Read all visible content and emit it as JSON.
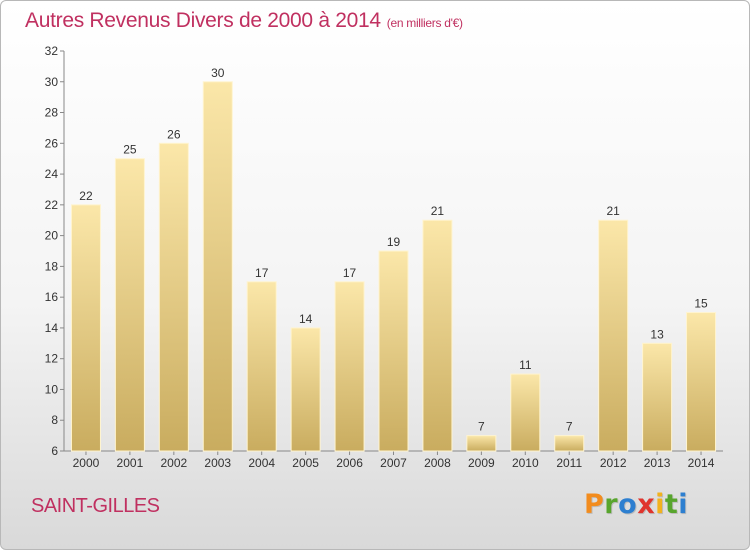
{
  "header": {
    "title": "Autres Revenus Divers de 2000 à 2014",
    "subtitle": "(en milliers d'€)"
  },
  "footer": {
    "city": "SAINT-GILLES",
    "logo": [
      "P",
      "r",
      "o",
      "x",
      "i",
      "t",
      "i"
    ]
  },
  "colors": {
    "title": "#c03060",
    "bar_light": "#fbe7a9",
    "bar_dark": "#c9ac5f",
    "logo": [
      "#f28c1e",
      "#58a52d",
      "#2d7fd0",
      "#e0342d",
      "#f2b21e",
      "#58a52d",
      "#2d7fd0"
    ]
  },
  "chart_data": {
    "type": "bar",
    "categories": [
      "2000",
      "2001",
      "2002",
      "2003",
      "2004",
      "2005",
      "2006",
      "2007",
      "2008",
      "2009",
      "2010",
      "2011",
      "2012",
      "2013",
      "2014"
    ],
    "values": [
      22,
      25,
      26,
      30,
      17,
      14,
      17,
      19,
      21,
      7,
      11,
      7,
      21,
      13,
      15
    ],
    "ylim": [
      6,
      32
    ],
    "yticks": [
      6,
      8,
      10,
      12,
      14,
      16,
      18,
      20,
      22,
      24,
      26,
      28,
      30,
      32
    ],
    "grid": false,
    "data_labels": true
  }
}
